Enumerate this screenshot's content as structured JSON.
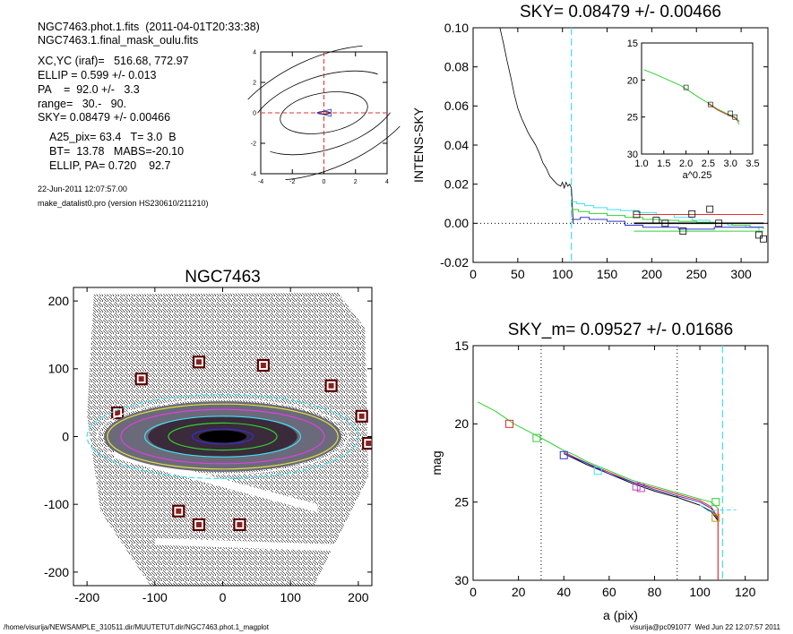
{
  "info": {
    "file_line": "NGC7463.phot.1.fits  (2011-04-01T20:33:38)",
    "mask_line": "NGC7463.1.final_mask_oulu.fits",
    "xcyc": "XC,YC (iraf)=   516.68, 772.97",
    "ellip": "ELLIP = 0.599 +/- 0.013",
    "pa": "PA    =  92.0 +/-   3.3",
    "range": "range=   30.-   90.",
    "sky": "SKY= 0.08479 +/- 0.00466",
    "a25": "A25_pix= 63.4   T= 3.0  B",
    "bt": "BT=  13.78   MABS=-20.10",
    "ellip_pa": "ELLIP, PA= 0.720    92.7",
    "date": "22-Jun-2011 12:07:57.00",
    "program": "make_datalist0.pro (version HS230610/211210)"
  },
  "footer": {
    "path": "/home/visurija/NEWSAMPLE_310511.dir/MUUTETUT.dir/NGC7463.phot.1_magplot",
    "user": "visurija@pc091077  Wed Jun 22 12:07:57 2011"
  },
  "colors": {
    "red": "#e03030",
    "green": "#30d030",
    "blue": "#3030d0",
    "cyan": "#40e0f0",
    "black": "#000000",
    "image_bg": "#9a9a9a"
  },
  "chart_data": [
    {
      "id": "contour",
      "type": "contour",
      "xlim": [
        -4,
        4
      ],
      "ylim": [
        -4,
        4
      ],
      "xticks": [
        -4,
        -2,
        0,
        2,
        4
      ],
      "yticks": [
        -4,
        -2,
        0,
        2,
        4
      ],
      "tick_labels": [
        "-4",
        "-2",
        "0",
        "2",
        "4"
      ],
      "crosshair": {
        "x": 0,
        "y": 0,
        "color": "red"
      },
      "ellipses": [
        {
          "a": 0.4,
          "b": 0.08,
          "angle": 0
        },
        {
          "a": 2.8,
          "b": 1.3,
          "angle": -10
        },
        {
          "a": 4.8,
          "b": 2.4,
          "angle": -18
        },
        {
          "a": 6.8,
          "b": 3.6,
          "angle": -25
        },
        {
          "a": 9.0,
          "b": 5.0,
          "angle": -30
        }
      ]
    },
    {
      "id": "sky",
      "type": "line",
      "title": "SKY= 0.08479 +/- 0.00466",
      "xlabel": "",
      "ylabel": "INTENS-SKY",
      "xlim": [
        0,
        330
      ],
      "ylim": [
        -0.02,
        0.1
      ],
      "xticks": [
        0,
        50,
        100,
        150,
        200,
        250,
        300
      ],
      "xtick_labels": [
        "0",
        "50",
        "100",
        "150",
        "200",
        "250",
        "300"
      ],
      "yticks": [
        -0.02,
        0.0,
        0.02,
        0.04,
        0.06,
        0.08,
        0.1
      ],
      "ytick_labels": [
        "-0.02",
        "0.00",
        "0.02",
        "0.04",
        "0.06",
        "0.08",
        "0.10"
      ],
      "vline": {
        "x": 110,
        "color": "cyan"
      },
      "zero_line": 0,
      "series": [
        {
          "color": "black",
          "x": [
            30,
            34,
            38,
            42,
            46,
            50,
            54,
            58,
            62,
            66,
            70,
            74,
            78,
            82,
            86,
            90,
            94,
            98,
            100,
            102,
            104,
            106,
            108,
            110,
            112
          ],
          "y": [
            0.1,
            0.092,
            0.083,
            0.075,
            0.066,
            0.059,
            0.054,
            0.05,
            0.046,
            0.043,
            0.04,
            0.036,
            0.031,
            0.028,
            0.024,
            0.022,
            0.02,
            0.019,
            0.021,
            0.018,
            0.021,
            0.019,
            0.02,
            0.018,
            0.0
          ]
        },
        {
          "color": "cyan",
          "x": [
            110,
            116,
            125,
            135,
            150,
            165,
            185,
            205,
            225,
            245,
            265,
            285,
            305,
            320
          ],
          "y": [
            0.011,
            0.01,
            0.009,
            0.008,
            0.007,
            0.0065,
            0.0055,
            0.0045,
            0.003,
            0.0015,
            0.0,
            -0.001,
            -0.002,
            -0.004
          ]
        },
        {
          "color": "green",
          "x": [
            110,
            118,
            130,
            150,
            170,
            190,
            210,
            230,
            250,
            270,
            290,
            310,
            325
          ],
          "y": [
            0.007,
            0.006,
            0.005,
            0.004,
            0.003,
            0.002,
            0.0015,
            0.001,
            0.0005,
            0.0,
            -0.001,
            -0.002,
            -0.003
          ]
        },
        {
          "color": "blue",
          "x": [
            110,
            120,
            130,
            150,
            170,
            190,
            210,
            230,
            250,
            270,
            290,
            310,
            325
          ],
          "y": [
            0.002,
            0.003,
            0.002,
            0.001,
            -0.001,
            -0.002,
            -0.002,
            -0.003,
            -0.003,
            -0.002,
            -0.002,
            -0.002,
            -0.002
          ]
        },
        {
          "color": "red",
          "x": [
            180,
            325
          ],
          "y": [
            0.0045,
            0.0045
          ]
        },
        {
          "color": "green",
          "x": [
            180,
            325
          ],
          "y": [
            -0.004,
            -0.004
          ]
        },
        {
          "color": "black",
          "x": [
            180,
            325
          ],
          "y": [
            0.0,
            0.0
          ]
        }
      ],
      "markers": {
        "x": [
          183,
          205,
          215,
          235,
          245,
          265,
          275,
          320,
          325
        ],
        "y": [
          0.0045,
          0.0015,
          0.0,
          -0.004,
          0.0048,
          0.0072,
          0.0,
          -0.006,
          -0.008
        ]
      },
      "inset": {
        "xlabel": "a^0.25",
        "xlim": [
          1.0,
          3.5
        ],
        "ylim": [
          15,
          30
        ],
        "xticks": [
          1.0,
          1.5,
          2.0,
          2.5,
          3.0,
          3.5
        ],
        "xtick_labels": [
          "1.0",
          "1.5",
          "2.0",
          "2.5",
          "3.0",
          "3.5"
        ],
        "yticks": [
          15,
          20,
          25,
          30
        ],
        "ytick_labels": [
          "15",
          "20",
          "25",
          "30"
        ],
        "series": [
          {
            "color": "green",
            "x": [
              1.05,
              1.3,
              1.6,
              1.9,
              2.1,
              2.3,
              2.5,
              2.7,
              2.9,
              3.1,
              3.2
            ],
            "y": [
              18.6,
              19.2,
              20.0,
              20.8,
              21.6,
              22.4,
              23.1,
              23.9,
              24.5,
              25.0,
              26.0
            ]
          },
          {
            "color": "red",
            "x": [
              2.5,
              2.7,
              2.9,
              3.1,
              3.2
            ],
            "y": [
              23.2,
              24.0,
              24.6,
              25.1,
              25.6
            ]
          }
        ],
        "markers": {
          "x": [
            2.0,
            2.55,
            3.0,
            3.1
          ],
          "y": [
            21.0,
            23.3,
            24.5,
            25.0
          ]
        }
      }
    },
    {
      "id": "image",
      "type": "image",
      "title": "NGC7463",
      "xlim": [
        -220,
        220
      ],
      "ylim": [
        -220,
        220
      ],
      "xticks": [
        -200,
        -100,
        0,
        100,
        200
      ],
      "xtick_labels": [
        "-200",
        "-100",
        "0",
        "100",
        "200"
      ],
      "yticks": [
        -200,
        -100,
        0,
        100,
        200
      ],
      "ytick_labels": [
        "-200",
        "-100",
        "0",
        "100",
        "200"
      ],
      "stars": {
        "x": [
          -155,
          -120,
          -35,
          60,
          160,
          205,
          215,
          -65,
          -35,
          25
        ],
        "y": [
          35,
          85,
          110,
          105,
          75,
          30,
          -10,
          -110,
          -130,
          -130
        ]
      },
      "galaxy_ellipses": [
        {
          "a": 200,
          "b": 62,
          "color": "cyan"
        },
        {
          "a": 185,
          "b": 55,
          "color": "white"
        },
        {
          "a": 170,
          "b": 48,
          "color": "yellow"
        },
        {
          "a": 150,
          "b": 40,
          "color": "magenta"
        },
        {
          "a": 115,
          "b": 30,
          "color": "cyan"
        },
        {
          "a": 80,
          "b": 20,
          "color": "green"
        },
        {
          "a": 45,
          "b": 11,
          "color": "blue"
        },
        {
          "a": 20,
          "b": 5,
          "color": "black"
        }
      ]
    },
    {
      "id": "mag",
      "type": "line",
      "title": "SKY_m=  0.09527 +/- 0.01686",
      "xlabel": "a (pix)",
      "ylabel": "mag",
      "xlim": [
        0,
        130
      ],
      "ylim": [
        15,
        30
      ],
      "xticks": [
        0,
        20,
        40,
        60,
        80,
        100,
        120
      ],
      "xtick_labels": [
        "0",
        "20",
        "40",
        "60",
        "80",
        "100",
        "120"
      ],
      "yticks": [
        15,
        20,
        25,
        30
      ],
      "ytick_labels": [
        "15",
        "20",
        "25",
        "30"
      ],
      "vlines": [
        {
          "x": 30,
          "style": "dotted"
        },
        {
          "x": 90,
          "style": "dotted"
        },
        {
          "x": 110,
          "style": "cyan"
        }
      ],
      "series": [
        {
          "color": "green",
          "x": [
            2,
            6,
            10,
            14,
            18,
            22,
            26,
            30,
            35,
            40,
            45,
            50,
            55,
            60,
            65,
            70,
            75,
            80,
            85,
            90,
            95,
            100,
            105,
            108
          ],
          "y": [
            18.6,
            18.9,
            19.2,
            19.6,
            20.0,
            20.3,
            20.6,
            20.9,
            21.3,
            21.7,
            22.0,
            22.4,
            22.7,
            23.0,
            23.3,
            23.6,
            23.8,
            24.0,
            24.2,
            24.4,
            24.6,
            24.8,
            25.0,
            25.4
          ]
        },
        {
          "color": "red",
          "x": [
            40,
            50,
            60,
            70,
            80,
            90,
            100,
            105,
            108
          ],
          "y": [
            21.8,
            22.5,
            23.1,
            23.7,
            24.1,
            24.5,
            24.9,
            25.3,
            26.0
          ]
        },
        {
          "color": "black",
          "x": [
            40,
            50,
            60,
            70,
            80,
            90,
            100,
            105,
            108
          ],
          "y": [
            21.9,
            22.6,
            23.2,
            23.8,
            24.3,
            24.7,
            25.2,
            25.6,
            26.2
          ]
        },
        {
          "color": "blue",
          "x": [
            40,
            50,
            60,
            70,
            80,
            90,
            100,
            105,
            108
          ],
          "y": [
            21.9,
            22.5,
            23.2,
            23.7,
            24.2,
            24.6,
            25.0,
            25.4,
            26.1
          ]
        },
        {
          "color": "cyan",
          "x": [
            100,
            104,
            108,
            112,
            116
          ],
          "y": [
            25.2,
            25.6,
            25.5,
            25.5,
            25.5
          ]
        }
      ],
      "markers": {
        "x": [
          16,
          28,
          40,
          55,
          72,
          74,
          107,
          107
        ],
        "y": [
          20.0,
          20.9,
          22.0,
          23.0,
          24.0,
          24.1,
          25.0,
          26.0
        ]
      }
    }
  ]
}
